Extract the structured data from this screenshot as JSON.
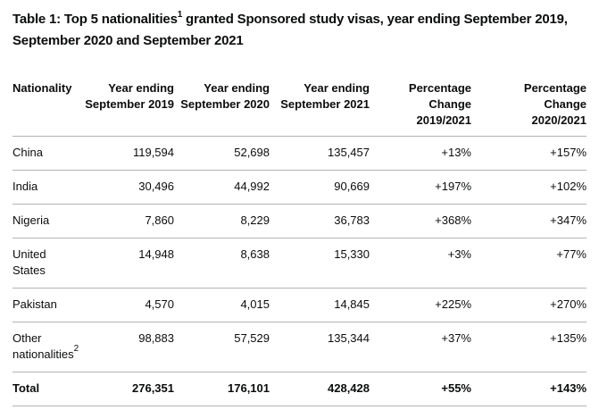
{
  "title": {
    "before_sup": "Table 1: Top 5 nationalities",
    "sup": "1",
    "after_sup": " granted Sponsored study visas, year ending September 2019, September 2020 and September 2021"
  },
  "table": {
    "columns": [
      "Nationality",
      "Year ending September 2019",
      "Year ending September 2020",
      "Year ending September 2021",
      "Percentage Change 2019/2021",
      "Percentage Change 2020/2021"
    ],
    "rows": [
      {
        "label": "China",
        "label_sup": "",
        "values": [
          "119,594",
          "52,698",
          "135,457",
          "+13%",
          "+157%"
        ]
      },
      {
        "label": "India",
        "label_sup": "",
        "values": [
          "30,496",
          "44,992",
          "90,669",
          "+197%",
          "+102%"
        ]
      },
      {
        "label": "Nigeria",
        "label_sup": "",
        "values": [
          "7,860",
          "8,229",
          "36,783",
          "+368%",
          "+347%"
        ]
      },
      {
        "label": "United States",
        "label_sup": "",
        "values": [
          "14,948",
          "8,638",
          "15,330",
          "+3%",
          "+77%"
        ]
      },
      {
        "label": "Pakistan",
        "label_sup": "",
        "values": [
          "4,570",
          "4,015",
          "14,845",
          "+225%",
          "+270%"
        ]
      },
      {
        "label": "Other nationalities",
        "label_sup": "2",
        "values": [
          "98,883",
          "57,529",
          "135,344",
          "+37%",
          "+135%"
        ]
      }
    ],
    "total_row": {
      "label": "Total",
      "values": [
        "276,351",
        "176,101",
        "428,428",
        "+55%",
        "+143%"
      ]
    }
  },
  "colors": {
    "text": "#0b0c0c",
    "border": "#b1b4b6",
    "background": "#ffffff"
  }
}
